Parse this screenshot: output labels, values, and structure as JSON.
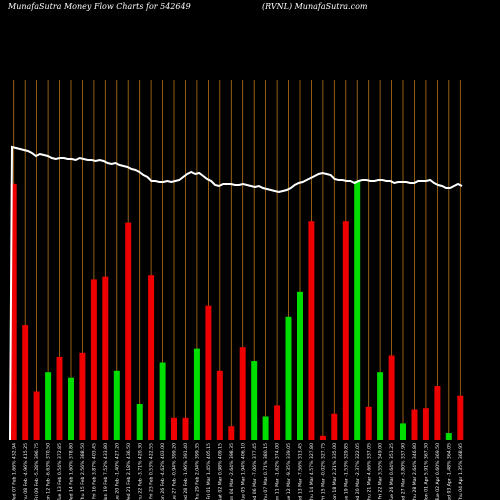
{
  "chart_data": {
    "type": "bar",
    "title_left": "MunafaSutra  Money Flow  Charts for 542649",
    "title_right": "(RVNL) MunafaSutra.com",
    "colors": {
      "background": "#000000",
      "up": "#00dd00",
      "down": "#ee0000",
      "grid": "#b8741a",
      "line": "#ffffff"
    },
    "grid": true,
    "ylim": [
      0,
      260
    ],
    "bars": [
      {
        "label": "Wed 07 Feb 1.66% 432.94",
        "value": 185,
        "color": "red"
      },
      {
        "label": "Thu 08 Feb -4.96% 415.25",
        "value": 83,
        "color": "red"
      },
      {
        "label": "Fri 09 Feb -5.28% 396.75",
        "value": 35,
        "color": "red"
      },
      {
        "label": "Mon 12 Feb -6.63% 370.50",
        "value": 49,
        "color": "green"
      },
      {
        "label": "Tue 13 Feb 0.54% 372.85",
        "value": 60,
        "color": "red"
      },
      {
        "label": "Wed 14 Feb 1.60% 378.80",
        "value": 45,
        "color": "green"
      },
      {
        "label": "Thu 15 Feb 2.56% 388.50",
        "value": 63,
        "color": "red"
      },
      {
        "label": "Fri 16 Feb 3.87% 403.45",
        "value": 116,
        "color": "red"
      },
      {
        "label": "Mon 19 Feb 7.52% 433.80",
        "value": 118,
        "color": "red"
      },
      {
        "label": "Tue 20 Feb -1.40% 427.20",
        "value": 50,
        "color": "green"
      },
      {
        "label": "Wed 21 Feb 2.18% 436.50",
        "value": 157,
        "color": "red"
      },
      {
        "label": "Thu 22 Feb -3.71% 420.30",
        "value": 26,
        "color": "green"
      },
      {
        "label": "Fri 23 Feb 0.53% 422.55",
        "value": 119,
        "color": "red"
      },
      {
        "label": "Mon 26 Feb -4.62% 403.00",
        "value": 56,
        "color": "green"
      },
      {
        "label": "Tue 27 Feb -0.94% 399.20",
        "value": 16,
        "color": "red"
      },
      {
        "label": "Wed 28 Feb -1.96% 391.40",
        "value": 16,
        "color": "red"
      },
      {
        "label": "Thu 29 Feb 2.04% 399.35",
        "value": 66,
        "color": "green"
      },
      {
        "label": "Fri 01 Mar 1.45% 405.15",
        "value": 97,
        "color": "red"
      },
      {
        "label": "Sat 02 Mar 0.98% 409.15",
        "value": 50,
        "color": "red"
      },
      {
        "label": "Mon 04 Mar -2.64% 398.35",
        "value": 10,
        "color": "red"
      },
      {
        "label": "Tue 05 Mar 1.94% 406.10",
        "value": 67,
        "color": "red"
      },
      {
        "label": "Wed 06 Mar -7.06% 377.45",
        "value": 57,
        "color": "green"
      },
      {
        "label": "Thu 07 Mar 0.71% 380.15",
        "value": 17,
        "color": "green"
      },
      {
        "label": "Mon 11 Mar -1.62% 374.00",
        "value": 25,
        "color": "red"
      },
      {
        "label": "Tue 12 Mar -9.35% 339.05",
        "value": 89,
        "color": "green"
      },
      {
        "label": "Wed 13 Mar -7.56% 313.45",
        "value": 107,
        "color": "green"
      },
      {
        "label": "Thu 14 Mar 4.57% 327.80",
        "value": 158,
        "color": "red"
      },
      {
        "label": "Fri 15 Mar -0.02% 327.75",
        "value": 3,
        "color": "red"
      },
      {
        "label": "Mon 18 Mar 2.21% 335.00",
        "value": 19,
        "color": "red"
      },
      {
        "label": "Tue 19 Mar -1.53% 329.85",
        "value": 158,
        "color": "red"
      },
      {
        "label": "Wed 20 Mar -2.37% 322.05",
        "value": 187,
        "color": "green"
      },
      {
        "label": "Thu 21 Mar 4.66% 337.05",
        "value": 24,
        "color": "red"
      },
      {
        "label": "Fri 22 Mar 3.55% 349.00",
        "value": 49,
        "color": "green"
      },
      {
        "label": "Tue 26 Mar 0.64% 351.25",
        "value": 61,
        "color": "red"
      },
      {
        "label": "Wed 27 Mar -3.80% 337.90",
        "value": 12,
        "color": "green"
      },
      {
        "label": "Thu 28 Mar 2.64% 346.80",
        "value": 22,
        "color": "red"
      },
      {
        "label": "Mon 01 Apr 5.91% 367.30",
        "value": 23,
        "color": "red"
      },
      {
        "label": "Tue 02 Apr 0.60% 369.50",
        "value": 39,
        "color": "red"
      },
      {
        "label": "Wed 03 Apr -1.48% 364.05",
        "value": 5,
        "color": "green"
      },
      {
        "label": "Thu 04 Apr 1.35% 368.95",
        "value": 32,
        "color": "red"
      }
    ],
    "price_line": [
      147,
      148,
      149,
      150,
      151,
      153,
      156,
      154,
      155,
      156,
      158,
      159,
      158,
      158,
      159,
      159,
      160,
      158,
      159,
      160,
      160,
      161,
      160,
      161,
      163,
      164,
      163,
      165,
      166,
      167,
      169,
      170,
      172,
      175,
      177,
      181,
      181,
      182,
      182,
      181,
      182,
      181,
      180,
      177,
      174,
      172,
      174,
      173,
      176,
      179,
      181,
      185,
      186,
      184,
      184,
      184,
      185,
      185,
      184,
      185,
      186,
      187,
      186,
      188,
      189,
      190,
      191,
      192,
      191,
      190,
      188,
      185,
      183,
      182,
      180,
      178,
      176,
      174,
      173,
      174,
      175,
      179,
      180,
      180,
      181,
      181,
      183,
      181,
      180,
      180,
      181,
      181,
      180,
      180,
      181,
      181,
      183,
      182,
      182,
      182,
      183,
      183,
      181,
      181,
      181,
      180,
      183,
      185,
      186,
      188,
      188,
      186,
      184,
      186
    ]
  }
}
